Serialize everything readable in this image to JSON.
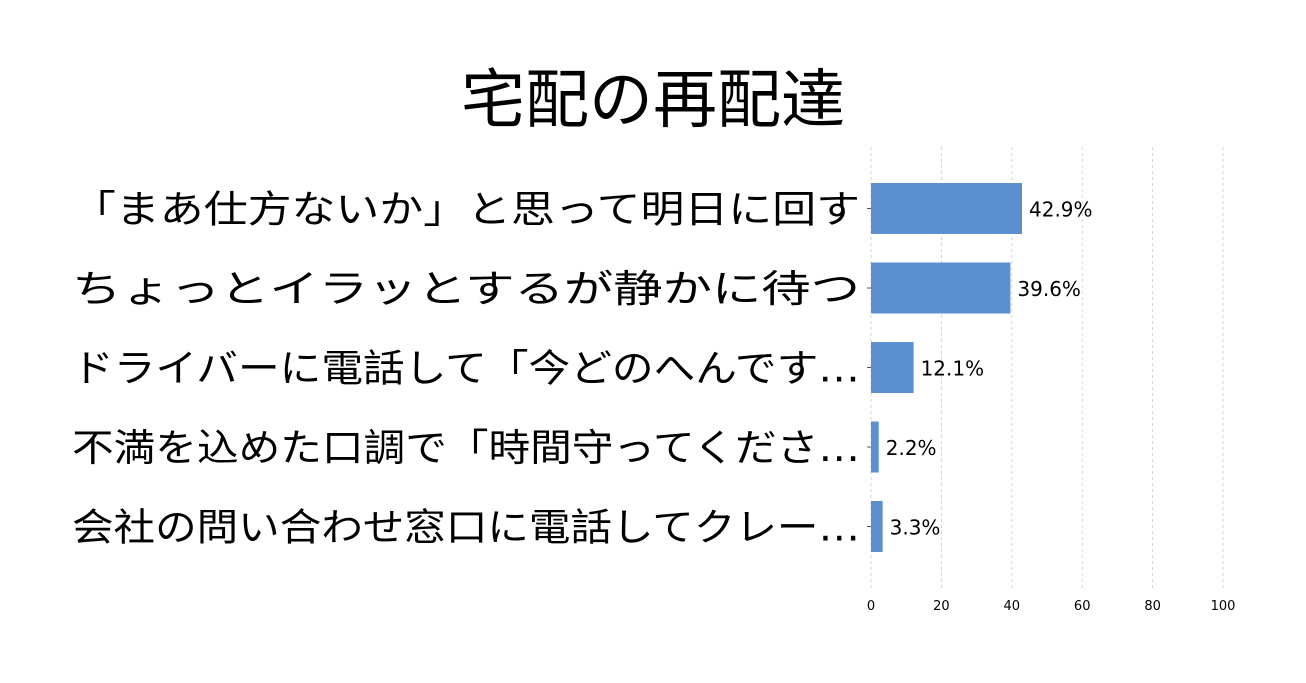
{
  "chart_data": {
    "type": "bar",
    "orientation": "horizontal",
    "title": "宅配の再配達",
    "categories": [
      "「まあ仕方ないか」と思って明日に回す",
      "ちょっとイラッとするが静かに待つ",
      "ドライバーに電話して「今どのへんです…",
      "不満を込めた口調で「時間守ってくださ…",
      "会社の問い合わせ窓口に電話してクレー…"
    ],
    "values": [
      42.9,
      39.6,
      12.1,
      2.2,
      3.3
    ],
    "value_labels": [
      "42.9%",
      "39.6%",
      "12.1%",
      "2.2%",
      "3.3%"
    ],
    "xlim": [
      0,
      100
    ],
    "xticks": [
      0,
      20,
      40,
      60,
      80,
      100
    ],
    "xlabel": "",
    "ylabel": "",
    "grid": "vertical-dashed",
    "bar_color": "#5b8fd0"
  }
}
